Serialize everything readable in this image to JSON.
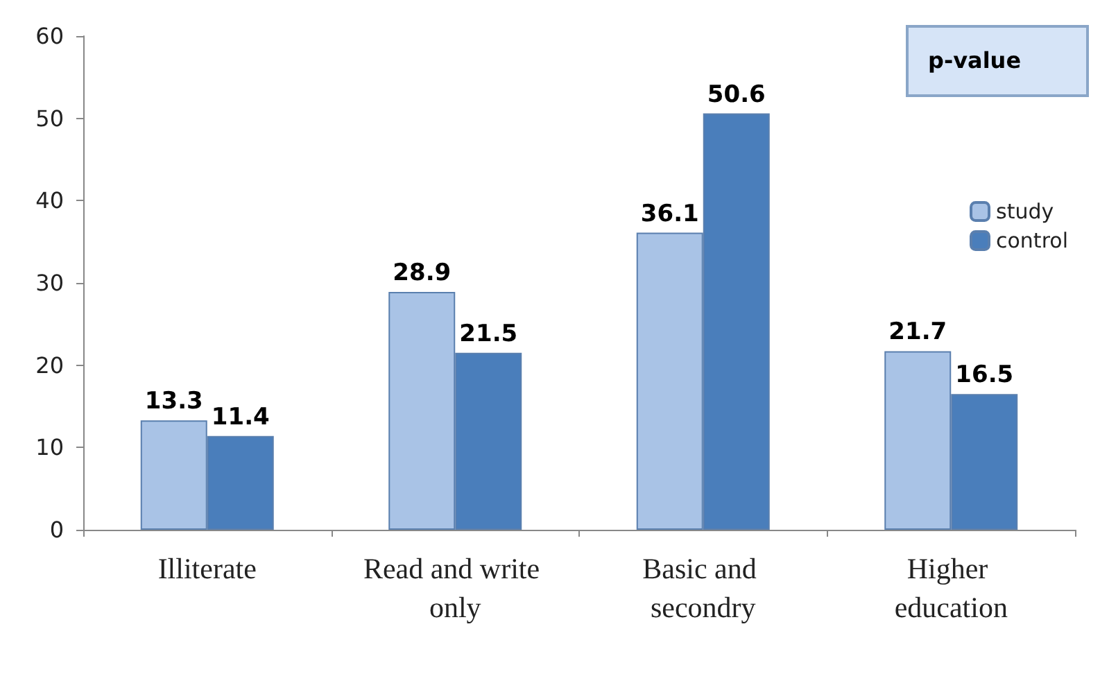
{
  "chart_data": {
    "type": "bar",
    "categories": [
      "Illiterate",
      "Read and write only",
      "Basic and secondry",
      "Higher education"
    ],
    "series": [
      {
        "name": "study",
        "color": "#a9c3e6",
        "values": [
          13.3,
          28.9,
          36.1,
          21.7
        ]
      },
      {
        "name": "control",
        "color": "#4a7ebb",
        "values": [
          11.4,
          21.5,
          50.6,
          16.5
        ]
      }
    ],
    "ylim": [
      0,
      60
    ],
    "yticks": [
      0,
      10,
      20,
      30,
      40,
      50,
      60
    ],
    "grid": false,
    "legend": "right",
    "data_labels": true,
    "annotations": [
      "p-value"
    ]
  }
}
